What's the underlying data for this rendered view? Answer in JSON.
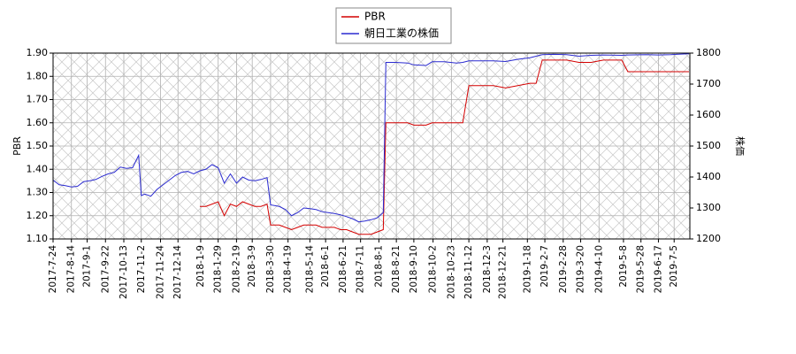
{
  "chart_data": {
    "type": "line",
    "x": [
      "2017-7-24",
      "2017-7-31",
      "2017-8-7",
      "2017-8-14",
      "2017-8-21",
      "2017-8-28",
      "2017-9-4",
      "2017-9-11",
      "2017-9-18",
      "2017-9-25",
      "2017-10-2",
      "2017-10-9",
      "2017-10-16",
      "2017-10-23",
      "2017-10-30",
      "2017-11-2",
      "2017-11-6",
      "2017-11-13",
      "2017-11-20",
      "2017-11-27",
      "2017-12-4",
      "2017-12-11",
      "2017-12-18",
      "2017-12-25",
      "2018-1-1",
      "2018-1-8",
      "2018-1-15",
      "2018-1-22",
      "2018-1-29",
      "2018-2-5",
      "2018-2-12",
      "2018-2-19",
      "2018-2-26",
      "2018-3-5",
      "2018-3-12",
      "2018-3-19",
      "2018-3-26",
      "2018-3-30",
      "2018-4-9",
      "2018-4-16",
      "2018-4-23",
      "2018-4-30",
      "2018-5-7",
      "2018-5-14",
      "2018-5-21",
      "2018-5-28",
      "2018-6-4",
      "2018-6-11",
      "2018-6-18",
      "2018-6-25",
      "2018-7-2",
      "2018-7-9",
      "2018-7-16",
      "2018-7-23",
      "2018-7-30",
      "2018-8-6",
      "2018-8-9",
      "2018-8-20",
      "2018-9-3",
      "2018-9-10",
      "2018-9-24",
      "2018-10-1",
      "2018-10-15",
      "2018-10-29",
      "2018-11-5",
      "2018-11-12",
      "2018-11-26",
      "2018-12-10",
      "2018-12-24",
      "2019-1-7",
      "2019-1-21",
      "2019-1-28",
      "2019-2-4",
      "2019-2-18",
      "2019-3-4",
      "2019-3-18",
      "2019-4-1",
      "2019-4-15",
      "2019-5-6",
      "2019-5-13",
      "2019-6-3",
      "2019-6-17",
      "2019-7-1",
      "2019-7-22"
    ],
    "series": [
      {
        "name": "PBR",
        "color": "#d40000",
        "axis": "y",
        "values": [
          null,
          null,
          null,
          null,
          null,
          null,
          null,
          null,
          null,
          null,
          null,
          null,
          null,
          null,
          null,
          null,
          null,
          null,
          null,
          null,
          null,
          null,
          null,
          null,
          null,
          1.24,
          1.24,
          1.25,
          1.26,
          1.2,
          1.25,
          1.24,
          1.26,
          1.25,
          1.24,
          1.24,
          1.25,
          1.16,
          1.16,
          1.15,
          1.14,
          1.15,
          1.16,
          1.16,
          1.16,
          1.15,
          1.15,
          1.15,
          1.14,
          1.14,
          1.13,
          1.12,
          1.12,
          1.12,
          1.13,
          1.14,
          1.6,
          1.6,
          1.6,
          1.59,
          1.59,
          1.6,
          1.6,
          1.6,
          1.6,
          1.76,
          1.76,
          1.76,
          1.75,
          1.76,
          1.77,
          1.77,
          1.87,
          1.87,
          1.87,
          1.86,
          1.86,
          1.87,
          1.87,
          1.82,
          1.82,
          1.82,
          1.82,
          1.82
        ]
      },
      {
        "name": "朝日工業の株価",
        "color": "#2a2ad0",
        "axis": "y2",
        "values": [
          1390,
          1375,
          1372,
          1368,
          1370,
          1385,
          1388,
          1392,
          1402,
          1410,
          1415,
          1432,
          1428,
          1430,
          1470,
          1340,
          1345,
          1338,
          1360,
          1375,
          1390,
          1405,
          1415,
          1418,
          1410,
          1420,
          1425,
          1440,
          1430,
          1380,
          1410,
          1380,
          1400,
          1390,
          1388,
          1392,
          1398,
          1310,
          1305,
          1295,
          1275,
          1285,
          1300,
          1298,
          1295,
          1288,
          1285,
          1282,
          1278,
          1272,
          1265,
          1255,
          1258,
          1262,
          1268,
          1285,
          1770,
          1770,
          1768,
          1762,
          1760,
          1772,
          1772,
          1768,
          1770,
          1775,
          1775,
          1775,
          1773,
          1780,
          1785,
          1790,
          1795,
          1796,
          1795,
          1790,
          1793,
          1794,
          1793,
          1794,
          1795,
          1794,
          1795,
          1798
        ]
      }
    ],
    "xlim": [
      "2017-7-24",
      "2019-7-23"
    ],
    "xticks": [
      "2017-7-24",
      "2017-8-14",
      "2017-9-1",
      "2017-9-22",
      "2017-10-13",
      "2017-11-2",
      "2017-11-24",
      "2017-12-14",
      "2018-1-9",
      "2018-1-29",
      "2018-2-19",
      "2018-3-9",
      "2018-3-30",
      "2018-4-19",
      "2018-5-14",
      "2018-6-1",
      "2018-6-21",
      "2018-7-11",
      "2018-8-1",
      "2018-8-21",
      "2018-9-10",
      "2018-10-2",
      "2018-10-23",
      "2018-11-12",
      "2018-12-3",
      "2018-12-21",
      "2019-1-18",
      "2019-2-7",
      "2019-2-28",
      "2019-3-20",
      "2019-4-10",
      "2019-5-8",
      "2019-5-28",
      "2019-6-17",
      "2019-7-5"
    ],
    "ylabel": "PBR",
    "ylim": [
      1.1,
      1.9
    ],
    "yticks": [
      {
        "value": 1.1,
        "label": "1.10"
      },
      {
        "value": 1.2,
        "label": "1.20"
      },
      {
        "value": 1.3,
        "label": "1.30"
      },
      {
        "value": 1.4,
        "label": "1.40"
      },
      {
        "value": 1.5,
        "label": "1.50"
      },
      {
        "value": 1.6,
        "label": "1.60"
      },
      {
        "value": 1.7,
        "label": "1.70"
      },
      {
        "value": 1.8,
        "label": "1.80"
      },
      {
        "value": 1.9,
        "label": "1.90"
      }
    ],
    "y2label": "株価",
    "y2lim": [
      1200,
      1800
    ],
    "y2ticks": [
      1200,
      1300,
      1400,
      1500,
      1600,
      1700,
      1800
    ],
    "grid": true,
    "legend": "upper center"
  }
}
